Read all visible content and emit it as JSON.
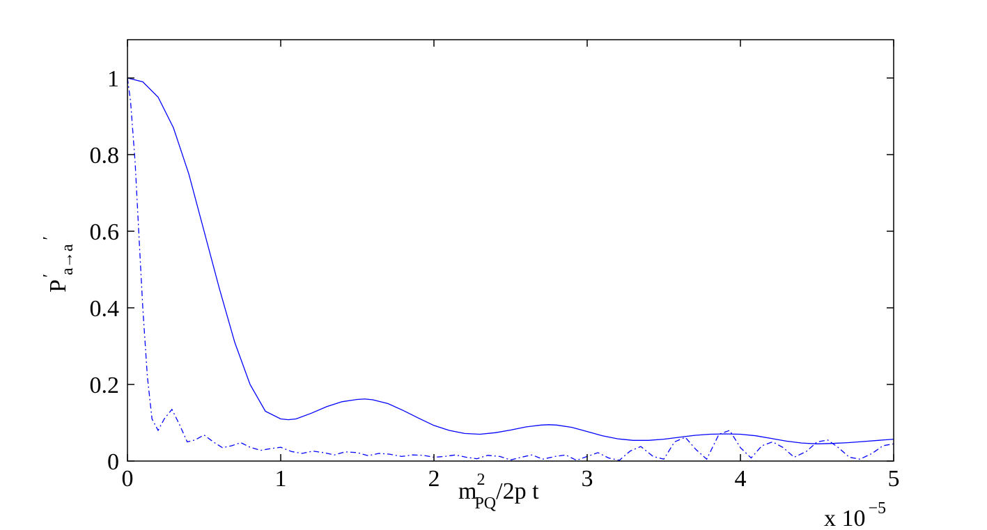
{
  "chart_data": {
    "type": "line",
    "xlim": [
      0,
      5
    ],
    "ylim": [
      0,
      1.1
    ],
    "x_exponent_label": "x 10",
    "x_exponent_power": "−5",
    "xticks": [
      "0",
      "1",
      "2",
      "3",
      "4",
      "5"
    ],
    "yticks": [
      "0",
      "0.2",
      "0.4",
      "0.6",
      "0.8",
      "1"
    ],
    "xlabel": {
      "main": "m",
      "sup": "2",
      "sub": "PQ",
      "rest": "/2p t"
    },
    "ylabel": {
      "main": "P",
      "sub": "a",
      "sup1": "′",
      "arrow": "→a",
      "sup2": "′"
    },
    "grid": false,
    "series": [
      {
        "style": "solid",
        "color": "#0000ff",
        "x": [
          0,
          0.1,
          0.2,
          0.3,
          0.4,
          0.5,
          0.6,
          0.7,
          0.8,
          0.9,
          1.0,
          1.05,
          1.1,
          1.2,
          1.3,
          1.4,
          1.5,
          1.55,
          1.6,
          1.7,
          1.8,
          1.9,
          2.0,
          2.1,
          2.2,
          2.3,
          2.4,
          2.5,
          2.6,
          2.7,
          2.75,
          2.8,
          2.9,
          3.0,
          3.1,
          3.2,
          3.3,
          3.4,
          3.5,
          3.6,
          3.7,
          3.8,
          3.9,
          4.0,
          4.1,
          4.2,
          4.3,
          4.4,
          4.5,
          4.6,
          4.7,
          4.8,
          4.9,
          5.0
        ],
        "y": [
          1.0,
          0.99,
          0.95,
          0.87,
          0.75,
          0.6,
          0.45,
          0.31,
          0.2,
          0.13,
          0.11,
          0.108,
          0.11,
          0.125,
          0.142,
          0.155,
          0.161,
          0.162,
          0.16,
          0.15,
          0.132,
          0.112,
          0.093,
          0.08,
          0.072,
          0.07,
          0.074,
          0.081,
          0.089,
          0.094,
          0.095,
          0.094,
          0.088,
          0.077,
          0.066,
          0.058,
          0.054,
          0.054,
          0.057,
          0.062,
          0.067,
          0.07,
          0.071,
          0.07,
          0.066,
          0.059,
          0.052,
          0.047,
          0.045,
          0.046,
          0.048,
          0.051,
          0.054,
          0.057
        ]
      },
      {
        "style": "dash-dot",
        "color": "#0000ff",
        "x": [
          0,
          0.02,
          0.05,
          0.08,
          0.1,
          0.13,
          0.16,
          0.2,
          0.24,
          0.29,
          0.34,
          0.39,
          0.44,
          0.5,
          0.56,
          0.62,
          0.68,
          0.74,
          0.8,
          0.87,
          0.94,
          1.0,
          1.07,
          1.14,
          1.21,
          1.28,
          1.35,
          1.42,
          1.5,
          1.57,
          1.64,
          1.71,
          1.79,
          1.86,
          1.93,
          2.0,
          2.07,
          2.14,
          2.21,
          2.28,
          2.35,
          2.43,
          2.5,
          2.57,
          2.64,
          2.71,
          2.79,
          2.86,
          2.93,
          3.0,
          3.07,
          3.14,
          3.21,
          3.28,
          3.35,
          3.43,
          3.5,
          3.57,
          3.64,
          3.71,
          3.78,
          3.86,
          3.93,
          4.0,
          4.07,
          4.14,
          4.21,
          4.28,
          4.35,
          4.43,
          4.5,
          4.57,
          4.64,
          4.71,
          4.78,
          4.86,
          4.93,
          5.0
        ],
        "y": [
          1.0,
          0.94,
          0.78,
          0.55,
          0.4,
          0.22,
          0.11,
          0.08,
          0.11,
          0.135,
          0.095,
          0.05,
          0.055,
          0.068,
          0.05,
          0.035,
          0.04,
          0.048,
          0.036,
          0.028,
          0.033,
          0.036,
          0.025,
          0.02,
          0.026,
          0.022,
          0.016,
          0.024,
          0.022,
          0.014,
          0.02,
          0.018,
          0.012,
          0.016,
          0.015,
          0.01,
          0.012,
          0.016,
          0.01,
          0.006,
          0.015,
          0.012,
          0.003,
          0.01,
          0.016,
          0.005,
          0.012,
          0.016,
          0.002,
          0.012,
          0.022,
          0.008,
          0.002,
          0.026,
          0.038,
          0.012,
          0.005,
          0.05,
          0.062,
          0.03,
          0.005,
          0.07,
          0.08,
          0.035,
          0.008,
          0.04,
          0.05,
          0.035,
          0.01,
          0.025,
          0.05,
          0.055,
          0.035,
          0.01,
          0.005,
          0.02,
          0.04,
          0.045
        ]
      }
    ]
  }
}
